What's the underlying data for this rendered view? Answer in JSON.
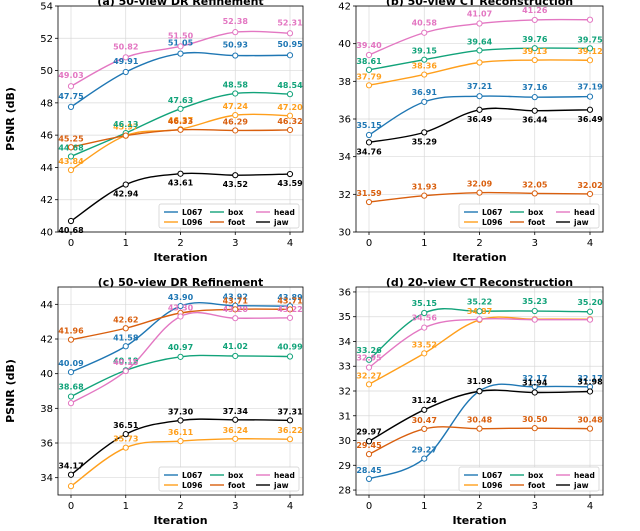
{
  "colors": {
    "L067": "#1f77b4",
    "L096": "#ff9f1c",
    "box": "#12a37a",
    "foot": "#d95f0e",
    "head": "#e377c2",
    "jaw": "#000000"
  },
  "chart_data": [
    {
      "type": "line",
      "title": "(a) 50-view DR Refinement",
      "xlabel": "Iteration",
      "ylabel": "PSNR (dB)",
      "x": [
        0,
        1,
        2,
        3,
        4
      ],
      "xticks": [
        "0",
        "1",
        "2",
        "3",
        "4"
      ],
      "ylim": [
        40,
        54
      ],
      "yticks": [
        "40",
        "42",
        "44",
        "46",
        "48",
        "50",
        "52",
        "54"
      ],
      "legend": [
        "L067",
        "L096",
        "box",
        "foot",
        "head",
        "jaw"
      ],
      "series": [
        {
          "name": "L067",
          "values": [
            47.75,
            49.91,
            51.05,
            50.93,
            50.95
          ],
          "labels": [
            "47.75",
            "49.91",
            "51.05",
            "50.93",
            "50.95"
          ]
        },
        {
          "name": "L096",
          "values": [
            43.84,
            45.97,
            46.37,
            47.24,
            47.2
          ],
          "labels": [
            "43.84",
            "45.97",
            "46.37",
            "47.24",
            "47.20"
          ]
        },
        {
          "name": "box",
          "values": [
            44.68,
            46.13,
            47.63,
            48.58,
            48.54
          ],
          "labels": [
            "44.68",
            "46.13",
            "47.63",
            "48.58",
            "48.54"
          ]
        },
        {
          "name": "foot",
          "values": [
            45.25,
            45.97,
            46.33,
            46.29,
            46.32
          ],
          "labels": [
            "45.25",
            "",
            "46.33",
            "46.29",
            "46.32"
          ]
        },
        {
          "name": "head",
          "values": [
            49.03,
            50.82,
            51.5,
            52.38,
            52.31
          ],
          "labels": [
            "49.03",
            "50.82",
            "51.50",
            "52.38",
            "52.31"
          ]
        },
        {
          "name": "jaw",
          "values": [
            40.68,
            42.94,
            43.61,
            43.52,
            43.59
          ],
          "labels": [
            "40.68",
            "42.94",
            "43.61",
            "43.52",
            "43.59"
          ]
        }
      ]
    },
    {
      "type": "line",
      "title": "(b) 50-view CT Reconstruction",
      "xlabel": "Iteration",
      "ylabel": "",
      "x": [
        0,
        1,
        2,
        3,
        4
      ],
      "xticks": [
        "0",
        "1",
        "2",
        "3",
        "4"
      ],
      "ylim": [
        30,
        42
      ],
      "yticks": [
        "30",
        "32",
        "34",
        "36",
        "38",
        "40",
        "42"
      ],
      "legend": [
        "L067",
        "L096",
        "box",
        "foot",
        "head",
        "jaw"
      ],
      "series": [
        {
          "name": "L067",
          "values": [
            35.15,
            36.91,
            37.21,
            37.16,
            37.19
          ],
          "labels": [
            "35.15",
            "36.91",
            "37.21",
            "37.16",
            "37.19"
          ]
        },
        {
          "name": "L096",
          "values": [
            37.79,
            38.36,
            39.0,
            39.13,
            39.12
          ],
          "labels": [
            "37.79",
            "38.36",
            "",
            "39.13",
            "39.12"
          ]
        },
        {
          "name": "box",
          "values": [
            38.61,
            39.15,
            39.64,
            39.76,
            39.75
          ],
          "labels": [
            "38.61",
            "39.15",
            "39.64",
            "39.76",
            "39.75"
          ]
        },
        {
          "name": "foot",
          "values": [
            31.59,
            31.93,
            32.09,
            32.05,
            32.02
          ],
          "labels": [
            "31.59",
            "31.93",
            "32.09",
            "32.05",
            "32.02"
          ]
        },
        {
          "name": "head",
          "values": [
            39.4,
            40.58,
            41.07,
            41.26,
            41.27
          ],
          "labels": [
            "39.40",
            "40.58",
            "41.07",
            "41.26",
            ""
          ]
        },
        {
          "name": "jaw",
          "values": [
            34.76,
            35.29,
            36.49,
            36.44,
            36.49
          ],
          "labels": [
            "34.76",
            "35.29",
            "36.49",
            "36.44",
            "36.49"
          ]
        }
      ]
    },
    {
      "type": "line",
      "title": "(c) 50-view DR Refinement",
      "xlabel": "Iteration",
      "ylabel": "PSNR (dB)",
      "x": [
        0,
        1,
        2,
        3,
        4
      ],
      "xticks": [
        "0",
        "1",
        "2",
        "3",
        "4"
      ],
      "ylim": [
        33,
        45
      ],
      "yticks": [
        "34",
        "36",
        "38",
        "40",
        "42",
        "44"
      ],
      "legend": [
        "L067",
        "L096",
        "box",
        "foot",
        "head",
        "jaw"
      ],
      "series": [
        {
          "name": "L067",
          "values": [
            40.09,
            41.58,
            43.9,
            43.92,
            43.89
          ],
          "labels": [
            "40.09",
            "41.58",
            "43.90",
            "43.92",
            "43.89"
          ]
        },
        {
          "name": "L096",
          "values": [
            33.51,
            35.73,
            36.11,
            36.24,
            36.22
          ],
          "labels": [
            "",
            "35.73",
            "36.11",
            "36.24",
            "36.22"
          ]
        },
        {
          "name": "box",
          "values": [
            38.68,
            40.19,
            40.97,
            41.02,
            40.99
          ],
          "labels": [
            "38.68",
            "40.19",
            "40.97",
            "41.02",
            "40.99"
          ]
        },
        {
          "name": "foot",
          "values": [
            41.96,
            42.62,
            43.5,
            43.71,
            43.71
          ],
          "labels": [
            "41.96",
            "42.62",
            "",
            "43.71",
            "43.71"
          ]
        },
        {
          "name": "head",
          "values": [
            38.3,
            40.15,
            43.3,
            43.2,
            43.22
          ],
          "labels": [
            "",
            "40.15",
            "43.30",
            "43.20",
            "43.22"
          ]
        },
        {
          "name": "jaw",
          "values": [
            34.17,
            36.51,
            37.3,
            37.34,
            37.31
          ],
          "labels": [
            "34.17",
            "36.51",
            "37.30",
            "37.34",
            "37.31"
          ]
        }
      ]
    },
    {
      "type": "line",
      "title": "(d) 20-view CT Reconstruction",
      "xlabel": "Iteration",
      "ylabel": "",
      "x": [
        0,
        1,
        2,
        3,
        4
      ],
      "xticks": [
        "0",
        "1",
        "2",
        "3",
        "4"
      ],
      "ylim": [
        27.8,
        36.2
      ],
      "yticks": [
        "28",
        "29",
        "30",
        "31",
        "32",
        "33",
        "34",
        "35",
        "36"
      ],
      "legend": [
        "L067",
        "L096",
        "box",
        "foot",
        "head",
        "jaw"
      ],
      "series": [
        {
          "name": "L067",
          "values": [
            28.45,
            29.27,
            32.0,
            32.17,
            32.17
          ],
          "labels": [
            "28.45",
            "29.27",
            "",
            "32.17",
            "32.17"
          ]
        },
        {
          "name": "L096",
          "values": [
            32.27,
            33.52,
            34.87,
            34.9,
            34.9
          ],
          "labels": [
            "32.27",
            "33.52",
            "34.87",
            "",
            ""
          ]
        },
        {
          "name": "box",
          "values": [
            33.26,
            35.15,
            35.22,
            35.23,
            35.2
          ],
          "labels": [
            "33.26",
            "35.15",
            "35.22",
            "35.23",
            "35.20"
          ]
        },
        {
          "name": "foot",
          "values": [
            29.45,
            30.47,
            30.48,
            30.5,
            30.48
          ],
          "labels": [
            "29.45",
            "30.47",
            "30.48",
            "30.50",
            "30.48"
          ]
        },
        {
          "name": "head",
          "values": [
            32.95,
            34.56,
            34.9,
            34.88,
            34.88
          ],
          "labels": [
            "32.95",
            "34.56",
            "",
            "",
            ""
          ]
        },
        {
          "name": "jaw",
          "values": [
            29.97,
            31.24,
            31.99,
            31.94,
            31.98
          ],
          "labels": [
            "29.97",
            "31.24",
            "31.99",
            "31.94",
            "31.98"
          ]
        }
      ]
    }
  ]
}
